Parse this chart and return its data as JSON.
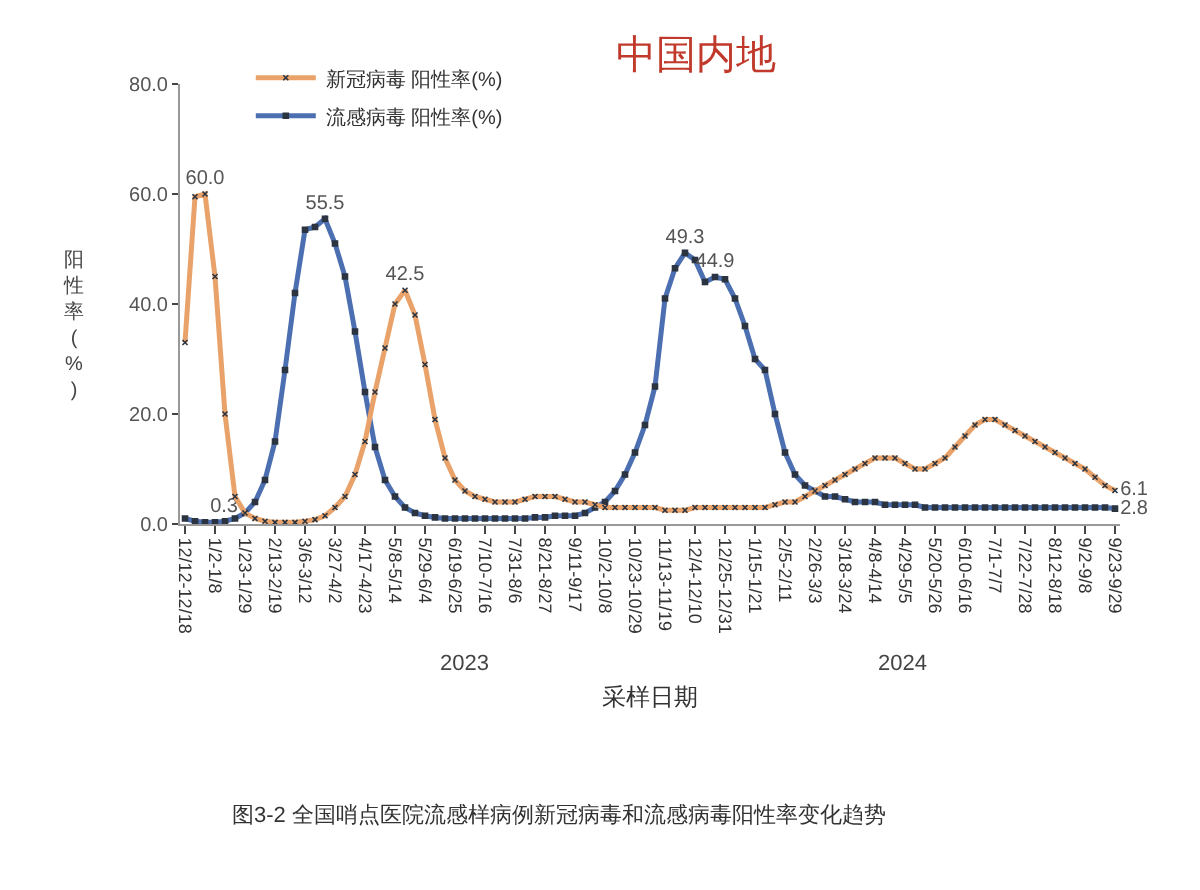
{
  "chart_data": {
    "type": "line",
    "title": "中国内地",
    "xlabel": "采样日期",
    "ylabel": "阳性率(%)",
    "categories": [
      "12/12-12/18",
      null,
      null,
      "1/2-1/8",
      null,
      null,
      "1/23-1/29",
      null,
      null,
      "2/13-2/19",
      null,
      null,
      "3/6-3/12",
      null,
      null,
      "3/27-4/2",
      null,
      null,
      "4/17-4/23",
      null,
      null,
      "5/8-5/14",
      null,
      null,
      "5/29-6/4",
      null,
      null,
      "6/19-6/25",
      null,
      null,
      "7/10-7/16",
      null,
      null,
      "7/31-8/6",
      null,
      null,
      "8/21-8/27",
      null,
      null,
      "9/11-9/17",
      null,
      null,
      "10/2-10/8",
      null,
      null,
      "10/23-10/29",
      null,
      null,
      "11/13-11/19",
      null,
      null,
      "12/4-12/10",
      null,
      null,
      "12/25-12/31",
      null,
      null,
      "1/15-1/21",
      null,
      null,
      "2/5-2/11",
      null,
      null,
      "2/26-3/3",
      null,
      null,
      "3/18-3/24",
      null,
      null,
      "4/8-4/14",
      null,
      null,
      "4/29-5/5",
      null,
      null,
      "5/20-5/26",
      null,
      null,
      "6/10-6/16",
      null,
      null,
      "7/1-7/7",
      null,
      null,
      "7/22-7/28",
      null,
      null,
      "8/12-8/18",
      null,
      null,
      "9/2-9/8",
      null,
      null,
      "9/23-9/29"
    ],
    "series": [
      {
        "name": "新冠病毒 阳性率(%)",
        "color": "#e9a36a",
        "marker": "cross",
        "values": [
          33,
          59.5,
          60.0,
          45,
          20,
          5,
          2,
          1,
          0.5,
          0.3,
          0.3,
          0.3,
          0.5,
          0.8,
          1.5,
          3,
          5,
          9,
          15,
          24,
          32,
          40,
          42.5,
          38,
          29,
          19,
          12,
          8,
          6,
          5,
          4.5,
          4,
          4,
          4,
          4.5,
          5,
          5,
          5,
          4.5,
          4,
          4,
          3.5,
          3,
          3,
          3,
          3,
          3,
          3,
          2.5,
          2.5,
          2.5,
          3,
          3,
          3,
          3,
          3,
          3,
          3,
          3,
          3.5,
          4,
          4,
          5,
          6,
          7,
          8,
          9,
          10,
          11,
          12,
          12,
          12,
          11,
          10,
          10,
          11,
          12,
          14,
          16,
          18,
          19,
          19,
          18,
          17,
          16,
          15,
          14,
          13,
          12,
          11,
          10,
          8.5,
          7,
          6.1
        ],
        "value_labels": [
          null,
          null,
          "60.0",
          null,
          null,
          null,
          null,
          null,
          null,
          null,
          null,
          null,
          null,
          null,
          null,
          null,
          null,
          null,
          null,
          null,
          null,
          null,
          "42.5",
          null,
          null,
          null,
          null,
          null,
          null,
          null,
          null,
          null,
          null,
          null,
          null,
          null,
          null,
          null,
          null,
          null,
          null,
          null,
          null,
          null,
          null,
          null,
          null,
          null,
          null,
          null,
          null,
          null,
          null,
          null,
          null,
          null,
          null,
          null,
          null,
          null,
          null,
          null,
          null,
          null,
          null,
          null,
          null,
          null,
          null,
          null,
          null,
          null,
          null,
          null,
          null,
          null,
          null,
          null,
          null,
          null,
          null,
          null,
          null,
          null,
          null,
          null,
          null,
          null,
          null,
          null,
          null,
          null,
          null,
          "6.1"
        ]
      },
      {
        "name": "流感病毒 阳性率(%)",
        "color": "#4b6fb0",
        "marker": "square",
        "values": [
          1,
          0.5,
          0.3,
          0.3,
          0.5,
          1,
          2,
          4,
          8,
          15,
          28,
          42,
          53.5,
          54,
          55.5,
          51,
          45,
          35,
          24,
          14,
          8,
          5,
          3,
          2,
          1.5,
          1.2,
          1,
          1,
          1,
          1,
          1,
          1,
          1,
          1,
          1,
          1.2,
          1.2,
          1.5,
          1.5,
          1.5,
          2,
          3,
          4,
          6,
          9,
          13,
          18,
          25,
          41,
          46.5,
          49.3,
          48,
          44,
          44.9,
          44.5,
          41,
          36,
          30,
          28,
          20,
          13,
          9,
          7,
          6,
          5,
          5,
          4.5,
          4,
          4,
          4,
          3.5,
          3.5,
          3.5,
          3.5,
          3,
          3,
          3,
          3,
          3,
          3,
          3,
          3,
          3,
          3,
          3,
          3,
          3,
          3,
          3,
          3,
          3,
          3,
          3,
          2.8
        ],
        "value_labels": [
          null,
          null,
          "0.3",
          null,
          null,
          null,
          null,
          null,
          null,
          null,
          null,
          null,
          null,
          null,
          "55.5",
          null,
          null,
          null,
          null,
          null,
          null,
          null,
          null,
          null,
          null,
          null,
          null,
          null,
          null,
          null,
          null,
          null,
          null,
          null,
          null,
          null,
          null,
          null,
          null,
          null,
          null,
          null,
          null,
          null,
          null,
          null,
          null,
          null,
          null,
          null,
          "49.3",
          null,
          null,
          "44.9",
          null,
          null,
          null,
          null,
          null,
          null,
          null,
          null,
          null,
          null,
          null,
          null,
          null,
          null,
          null,
          null,
          null,
          null,
          null,
          null,
          null,
          null,
          null,
          null,
          null,
          null,
          null,
          null,
          null,
          null,
          null,
          null,
          null,
          null,
          null,
          null,
          null,
          null,
          null,
          "2.8"
        ]
      }
    ],
    "ylim": [
      0,
      80
    ],
    "yticks": [
      {
        "value": 0,
        "label": "0.0"
      },
      {
        "value": 20,
        "label": "20.0"
      },
      {
        "value": 40,
        "label": "40.0"
      },
      {
        "value": 60,
        "label": "60.0"
      },
      {
        "value": 80,
        "label": "80.0"
      }
    ],
    "grid": false,
    "legend": "top left",
    "line_style": "solid",
    "annotations": [
      "2023",
      "2024",
      "图3-2 全国哨点医院流感样病例新冠病毒和流感病毒阳性率变化趋势"
    ]
  }
}
